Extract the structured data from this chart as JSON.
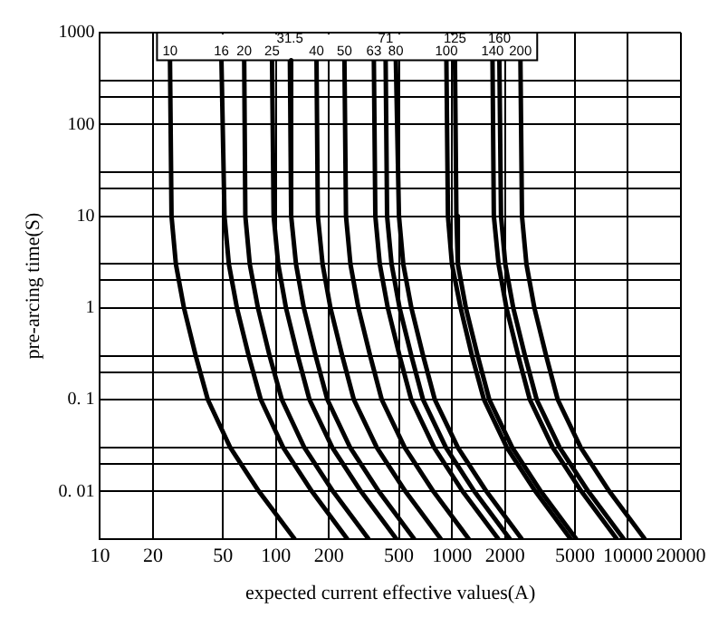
{
  "chart_data": {
    "type": "line",
    "xlabel": "expected current effective values(A)",
    "ylabel": "pre-arcing time(S)",
    "log": "xy",
    "grid": true,
    "marker": "none",
    "xlim": [
      10,
      20000
    ],
    "xticks": [
      10,
      20,
      50,
      100,
      200,
      500,
      1000,
      2000,
      5000,
      10000,
      20000
    ],
    "ylim": [
      0.003,
      1000
    ],
    "yticks": [
      1000,
      {
        "value": 300,
        "label": null
      },
      {
        "value": 200,
        "label": null
      },
      100,
      {
        "value": 30,
        "label": null
      },
      {
        "value": 20,
        "label": null
      },
      10,
      {
        "value": 3,
        "label": null
      },
      {
        "value": 2,
        "label": null
      },
      1,
      {
        "value": 0.3,
        "label": null
      },
      {
        "value": 0.2,
        "label": null
      },
      {
        "value": 0.1,
        "label": "0. 1"
      },
      {
        "value": 0.03,
        "label": null
      },
      {
        "value": 0.02,
        "label": null
      },
      {
        "value": 0.01,
        "label": "0. 01"
      }
    ],
    "series": [
      {
        "name": "10",
        "color": "#000000",
        "x": [
          25,
          25.5,
          27,
          30,
          35,
          41,
          55,
          80,
          128
        ],
        "values": [
          500,
          10,
          3,
          1,
          0.3,
          0.1,
          0.03,
          0.01,
          0.003
        ]
      },
      {
        "name": "16",
        "color": "#000000",
        "x": [
          49,
          51,
          54,
          60,
          70,
          82,
          110,
          160,
          255
        ],
        "values": [
          500,
          10,
          3,
          1,
          0.3,
          0.1,
          0.03,
          0.01,
          0.003
        ]
      },
      {
        "name": "20",
        "color": "#000000",
        "x": [
          66,
          67,
          71,
          79,
          92,
          108,
          145,
          211,
          337
        ],
        "values": [
          500,
          10,
          3,
          1,
          0.3,
          0.1,
          0.03,
          0.01,
          0.003
        ]
      },
      {
        "name": "25",
        "color": "#000000",
        "x": [
          95,
          97,
          103,
          114,
          133,
          155,
          209,
          304,
          485
        ],
        "values": [
          500,
          10,
          3,
          1,
          0.3,
          0.1,
          0.03,
          0.01,
          0.003
        ]
      },
      {
        "name": "31.5",
        "color": "#000000",
        "x": [
          120,
          122,
          130,
          144,
          168,
          196,
          264,
          384,
          612
        ],
        "values": [
          500,
          10,
          3,
          1,
          0.3,
          0.1,
          0.03,
          0.01,
          0.003
        ]
      },
      {
        "name": "40",
        "color": "#000000",
        "x": [
          170,
          173,
          184,
          204,
          238,
          277,
          374,
          544,
          867
        ],
        "values": [
          500,
          10,
          3,
          1,
          0.3,
          0.1,
          0.03,
          0.01,
          0.003
        ]
      },
      {
        "name": "50",
        "color": "#000000",
        "x": [
          245,
          250,
          265,
          294,
          343,
          399,
          539,
          784,
          1250
        ],
        "values": [
          500,
          10,
          3,
          1,
          0.3,
          0.1,
          0.03,
          0.01,
          0.003
        ]
      },
      {
        "name": "63",
        "color": "#000000",
        "x": [
          360,
          367,
          389,
          432,
          504,
          587,
          792,
          1150,
          1840
        ],
        "values": [
          500,
          10,
          3,
          1,
          0.3,
          0.1,
          0.03,
          0.01,
          0.003
        ]
      },
      {
        "name": "71",
        "color": "#000000",
        "x": [
          420,
          428,
          454,
          504,
          588,
          685,
          924,
          1340,
          2140
        ],
        "values": [
          500,
          10,
          3,
          1,
          0.3,
          0.1,
          0.03,
          0.01,
          0.003
        ]
      },
      {
        "name": "80",
        "color": "#000000",
        "x": [
          480,
          500,
          529,
          588,
          686,
          799,
          1080,
          1570,
          2500
        ],
        "values": [
          500,
          10,
          3,
          1,
          0.3,
          0.1,
          0.03,
          0.01,
          0.003
        ]
      },
      {
        "name": "100",
        "color": "#000000",
        "x": [
          930,
          949,
          1000,
          1120,
          1300,
          1520,
          2050,
          2980,
          4740
        ],
        "values": [
          500,
          10,
          3,
          1,
          0.3,
          0.1,
          0.03,
          0.01,
          0.003
        ]
      },
      {
        "name": "125",
        "color": "#000000",
        "x": [
          1040,
          1060,
          1080,
          1200,
          1400,
          1630,
          2200,
          3200,
          5100
        ],
        "values": [
          500,
          10,
          3,
          1,
          0.3,
          0.1,
          0.03,
          0.01,
          0.003
        ]
      },
      {
        "name": "140",
        "color": "#000000",
        "x": [
          1700,
          1730,
          1840,
          2040,
          2380,
          2770,
          3740,
          5440,
          8670
        ],
        "values": [
          500,
          10,
          3,
          1,
          0.3,
          0.1,
          0.03,
          0.01,
          0.003
        ]
      },
      {
        "name": "160",
        "color": "#000000",
        "x": [
          1860,
          1900,
          2010,
          2230,
          2600,
          3030,
          4090,
          5950,
          9490
        ],
        "values": [
          500,
          10,
          3,
          1,
          0.3,
          0.1,
          0.03,
          0.01,
          0.003
        ]
      },
      {
        "name": "200",
        "color": "#000000",
        "x": [
          2450,
          2500,
          2650,
          2940,
          3430,
          3990,
          5390,
          7840,
          12500
        ],
        "values": [
          500,
          10,
          3,
          1,
          0.3,
          0.1,
          0.03,
          0.01,
          0.003
        ]
      }
    ]
  }
}
